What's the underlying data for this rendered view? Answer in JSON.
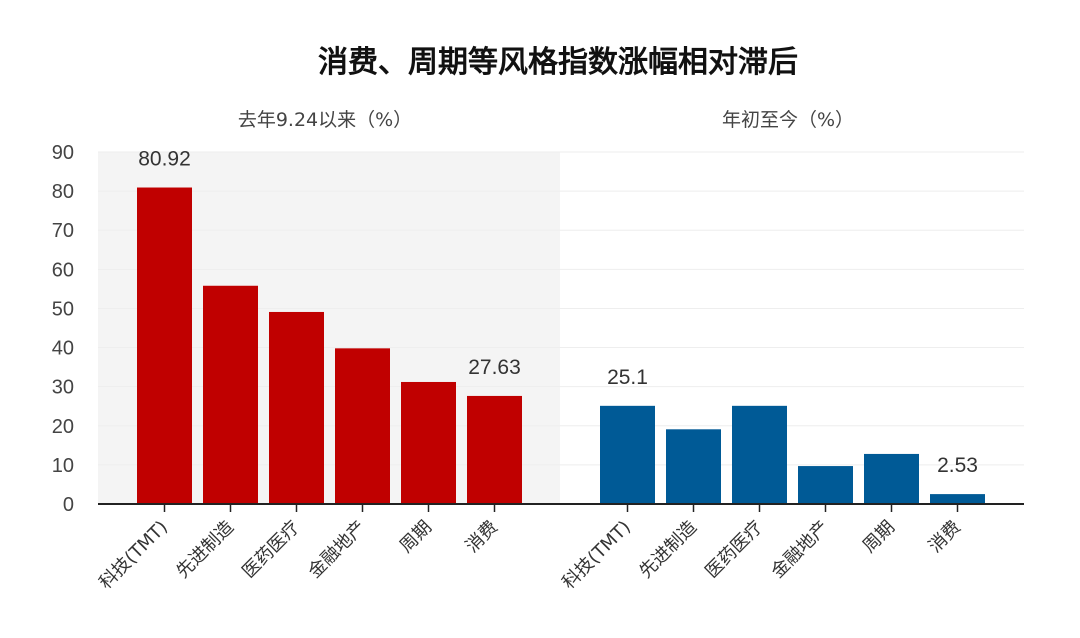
{
  "chart_data": {
    "title": "消费、周期等风格指数涨幅相对滞后",
    "type": "bar",
    "ylim": [
      0,
      90
    ],
    "yticks": [
      0,
      10,
      20,
      30,
      40,
      50,
      60,
      70,
      80,
      90
    ],
    "grid": true,
    "panels": [
      {
        "subtitle": "去年9.24以来（%）",
        "shaded_background": true,
        "color": "#c00000",
        "categories": [
          "科技(TMT)",
          "先进制造",
          "医药医疗",
          "金融地产",
          "周期",
          "消费"
        ],
        "values": [
          80.92,
          55.8,
          49.1,
          39.8,
          31.2,
          27.63
        ],
        "labels": [
          "80.92",
          "",
          "",
          "",
          "",
          "27.63"
        ]
      },
      {
        "subtitle": "年初至今（%）",
        "shaded_background": false,
        "color": "#005a96",
        "categories": [
          "科技(TMT)",
          "先进制造",
          "医药医疗",
          "金融地产",
          "周期",
          "消费"
        ],
        "values": [
          25.1,
          19.1,
          25.1,
          9.7,
          12.8,
          2.53
        ],
        "labels": [
          "25.1",
          "",
          "",
          "",
          "",
          "2.53"
        ]
      }
    ]
  }
}
